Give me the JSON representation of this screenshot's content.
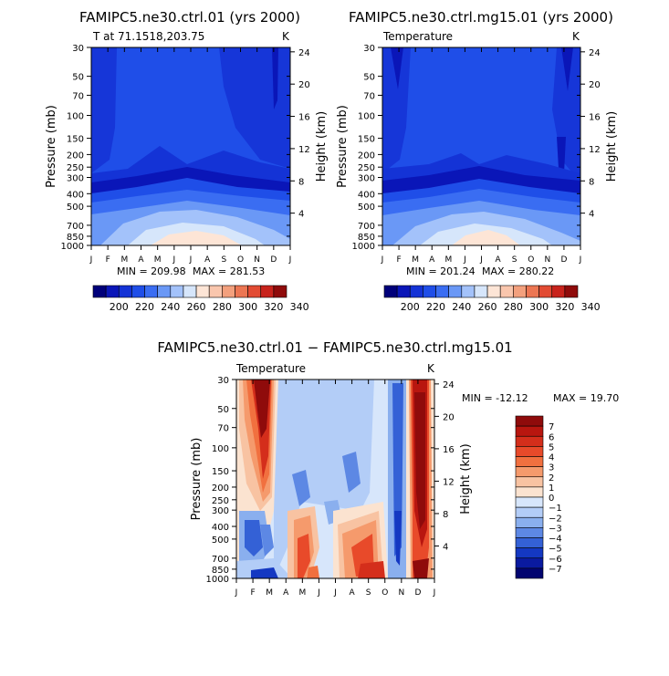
{
  "chart_data": [
    {
      "type": "heatmap",
      "title": "FAMIPC5.ne30.ctrl.01 (yrs 2000)",
      "subtitle": "T at 71.1518,203.75",
      "units": "K",
      "xlabel": "",
      "ylabel": "Pressure (mb)",
      "ylabel_right": "Height (km)",
      "x_ticks": [
        "J",
        "F",
        "M",
        "A",
        "M",
        "J",
        "J",
        "A",
        "S",
        "O",
        "N",
        "D",
        "J"
      ],
      "y_ticks": [
        30,
        50,
        70,
        100,
        150,
        200,
        250,
        300,
        400,
        500,
        700,
        850,
        1000
      ],
      "y_ticks_right": [
        24,
        20,
        16,
        12,
        8,
        4
      ],
      "min_label": "MIN = 209.98",
      "max_label": "MAX = 281.53",
      "colorbar_labels": [
        "200",
        "220",
        "240",
        "260",
        "280",
        "300",
        "320",
        "340"
      ],
      "colorbar_colors": [
        "#00007a",
        "#0a16b8",
        "#1433d6",
        "#1f4ee8",
        "#3a6df2",
        "#6a98f6",
        "#a3c2fa",
        "#d6e6fb",
        "#fde5d6",
        "#f9c6ad",
        "#f3a07d",
        "#ec7653",
        "#e24b33",
        "#c8231c",
        "#8f0b0b"
      ],
      "ylim": [
        1000,
        30
      ]
    },
    {
      "type": "heatmap",
      "title": "FAMIPC5.ne30.ctrl.mg15.01 (yrs 2000)",
      "subtitle": "Temperature",
      "units": "K",
      "ylabel": "Pressure (mb)",
      "ylabel_right": "Height (km)",
      "x_ticks": [
        "J",
        "F",
        "M",
        "A",
        "M",
        "J",
        "J",
        "A",
        "S",
        "O",
        "N",
        "D",
        "J"
      ],
      "y_ticks": [
        30,
        50,
        70,
        100,
        150,
        200,
        250,
        300,
        400,
        500,
        700,
        850,
        1000
      ],
      "y_ticks_right": [
        24,
        20,
        16,
        12,
        8,
        4
      ],
      "min_label": "MIN = 201.24",
      "max_label": "MAX = 280.22",
      "colorbar_labels": [
        "200",
        "220",
        "240",
        "260",
        "280",
        "300",
        "320",
        "340"
      ],
      "ylim": [
        1000,
        30
      ]
    },
    {
      "type": "heatmap",
      "title": "FAMIPC5.ne30.ctrl.01 − FAMIPC5.ne30.ctrl.mg15.01",
      "subtitle": "Temperature",
      "units": "K",
      "ylabel": "Pressure (mb)",
      "ylabel_right": "Height (km)",
      "x_ticks": [
        "J",
        "F",
        "M",
        "A",
        "M",
        "J",
        "J",
        "A",
        "S",
        "O",
        "N",
        "D",
        "J"
      ],
      "y_ticks": [
        30,
        50,
        70,
        100,
        150,
        200,
        250,
        300,
        400,
        500,
        700,
        850,
        1000
      ],
      "y_ticks_right": [
        24,
        20,
        16,
        12,
        8,
        4
      ],
      "min_label": "MIN = -12.12",
      "max_label": "MAX =  19.70",
      "colorbar_labels": [
        "7",
        "6",
        "5",
        "4",
        "3",
        "2",
        "1",
        "0",
        "−1",
        "−2",
        "−3",
        "−4",
        "−5",
        "−6",
        "−7"
      ],
      "colorbar_colors": [
        "#8f0b0b",
        "#b8160f",
        "#d42e1b",
        "#e84a2a",
        "#f1703f",
        "#f59a6c",
        "#f8c3a2",
        "#fbe3d0",
        "#d7e6fb",
        "#b3cdf7",
        "#8aafee",
        "#5d88e4",
        "#3461d6",
        "#1438c2",
        "#0a1aa0",
        "#020470"
      ],
      "ylim": [
        1000,
        30
      ]
    }
  ]
}
